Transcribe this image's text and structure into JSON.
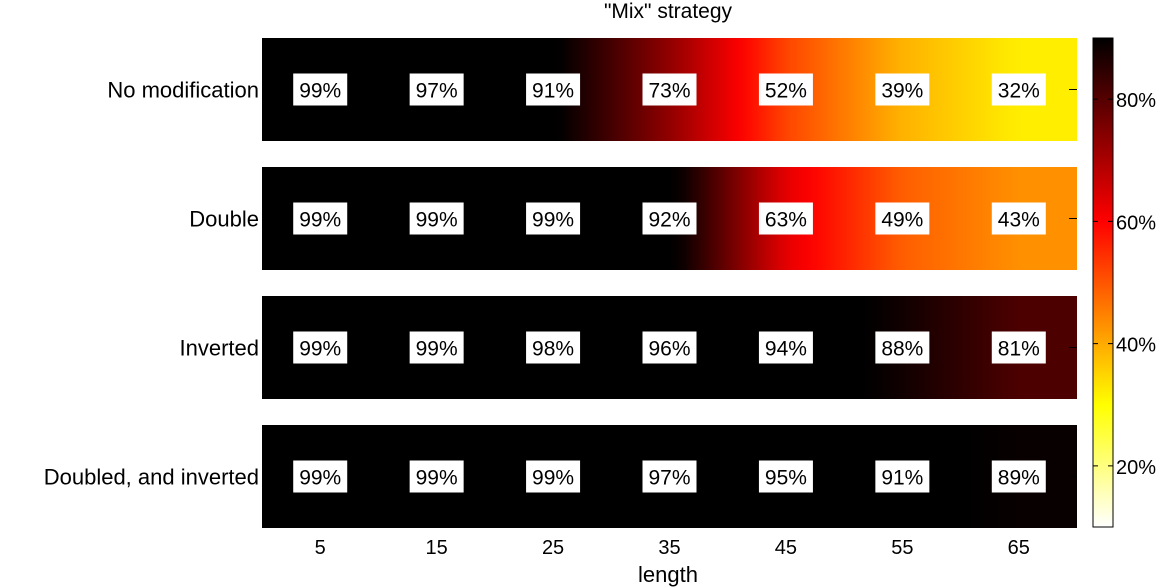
{
  "chart_data": {
    "type": "heatmap",
    "title": "\"Mix\" strategy",
    "xlabel": "length",
    "ylabel": "",
    "x": [
      "5",
      "15",
      "25",
      "35",
      "45",
      "55",
      "65"
    ],
    "rows": [
      {
        "label": "No modification",
        "values": [
          99,
          97,
          91,
          73,
          52,
          39,
          32
        ]
      },
      {
        "label": "Double",
        "values": [
          99,
          99,
          99,
          92,
          63,
          49,
          43
        ]
      },
      {
        "label": "Inverted",
        "values": [
          99,
          99,
          98,
          96,
          94,
          88,
          81
        ]
      },
      {
        "label": "Doubled, and inverted",
        "values": [
          99,
          99,
          99,
          97,
          95,
          91,
          89
        ]
      }
    ],
    "value_suffix": "%",
    "colormap": "hot (reversed)",
    "colorbar": {
      "range": [
        10,
        90
      ],
      "ticks": [
        20,
        40,
        60,
        80
      ],
      "tick_labels": [
        "20%",
        "40%",
        "60%",
        "80%"
      ]
    },
    "grid": false
  }
}
